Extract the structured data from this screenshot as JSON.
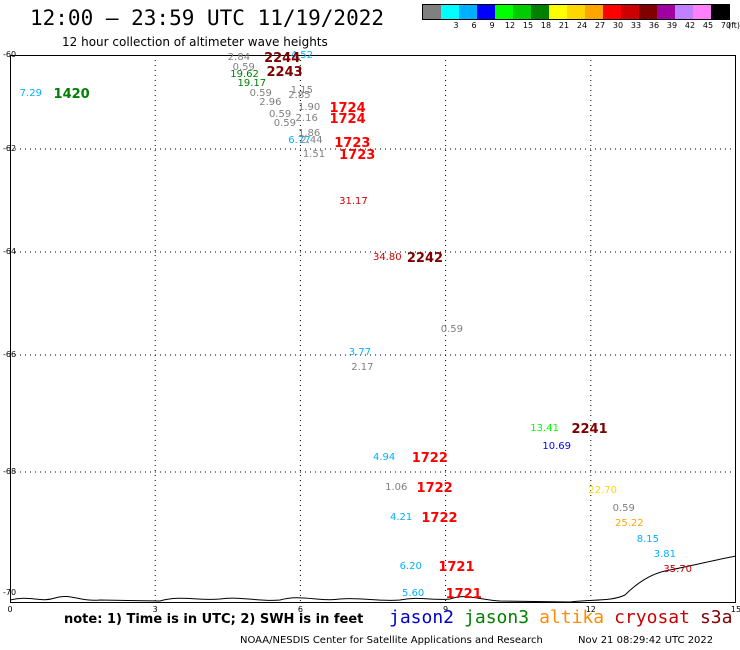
{
  "header": {
    "title": "12:00 – 23:59 UTC 11/19/2022",
    "subtitle": "12 hour collection of altimeter wave heights"
  },
  "legend": {
    "unit": "(ft)",
    "items": [
      {
        "label": "",
        "color": "#808080"
      },
      {
        "label": "3",
        "color": "#00ffff"
      },
      {
        "label": "6",
        "color": "#00b0ff"
      },
      {
        "label": "9",
        "color": "#0000ff"
      },
      {
        "label": "12",
        "color": "#00ff00"
      },
      {
        "label": "15",
        "color": "#00cc00"
      },
      {
        "label": "18",
        "color": "#008000"
      },
      {
        "label": "21",
        "color": "#ffff00"
      },
      {
        "label": "24",
        "color": "#ffd700"
      },
      {
        "label": "27",
        "color": "#ffa500"
      },
      {
        "label": "30",
        "color": "#ff0000"
      },
      {
        "label": "33",
        "color": "#cc0000"
      },
      {
        "label": "36",
        "color": "#800000"
      },
      {
        "label": "39",
        "color": "#a000a0"
      },
      {
        "label": "42",
        "color": "#c080ff"
      },
      {
        "label": "45",
        "color": "#ff80ff"
      },
      {
        "label": "70",
        "color": "#000000"
      }
    ]
  },
  "axes": {
    "lat_ticks": [
      "-60",
      "-62",
      "-64",
      "-66",
      "-68",
      "-70"
    ],
    "lon_ticks": [
      "0",
      "3",
      "6",
      "9",
      "12",
      "15"
    ]
  },
  "observations": [
    {
      "text": "7.29",
      "color": "#00b0ff",
      "lon": 0.2,
      "lat": -60.8
    },
    {
      "text": "2.84",
      "color": "#808080",
      "lon": 4.5,
      "lat": -60.05
    },
    {
      "text": "0.59",
      "color": "#808080",
      "lon": 4.6,
      "lat": -60.25
    },
    {
      "text": "19.62",
      "color": "#008000",
      "lon": 4.55,
      "lat": -60.4
    },
    {
      "text": "19.17",
      "color": "#008000",
      "lon": 4.7,
      "lat": -60.6
    },
    {
      "text": "0.59",
      "color": "#808080",
      "lon": 4.95,
      "lat": -60.8
    },
    {
      "text": "1.15",
      "color": "#808080",
      "lon": 5.8,
      "lat": -60.75
    },
    {
      "text": "2.85",
      "color": "#808080",
      "lon": 5.75,
      "lat": -60.85
    },
    {
      "text": "2.96",
      "color": "#808080",
      "lon": 5.15,
      "lat": -61.0
    },
    {
      "text": "1.90",
      "color": "#808080",
      "lon": 5.95,
      "lat": -61.1
    },
    {
      "text": "0.59",
      "color": "#808080",
      "lon": 5.35,
      "lat": -61.25
    },
    {
      "text": "2.16",
      "color": "#808080",
      "lon": 5.9,
      "lat": -61.35
    },
    {
      "text": "0.59",
      "color": "#808080",
      "lon": 5.45,
      "lat": -61.45
    },
    {
      "text": "1.86",
      "color": "#808080",
      "lon": 5.95,
      "lat": -61.65
    },
    {
      "text": "6.77",
      "color": "#00b0ff",
      "lon": 5.75,
      "lat": -61.8
    },
    {
      "text": "2.44",
      "color": "#808080",
      "lon": 6.0,
      "lat": -61.8
    },
    {
      "text": "1.51",
      "color": "#808080",
      "lon": 6.05,
      "lat": -62.1
    },
    {
      "text": "31.17",
      "color": "#cc0000",
      "lon": 6.8,
      "lat": -63.0
    },
    {
      "text": "34.80",
      "color": "#cc0000",
      "lon": 7.5,
      "lat": -64.1
    },
    {
      "text": "0.59",
      "color": "#808080",
      "lon": 8.9,
      "lat": -65.5
    },
    {
      "text": "3.77",
      "color": "#00b0ff",
      "lon": 7.0,
      "lat": -65.95
    },
    {
      "text": "2.17",
      "color": "#808080",
      "lon": 7.05,
      "lat": -66.2
    },
    {
      "text": "13.41",
      "color": "#00ff00",
      "lon": 10.75,
      "lat": -67.25
    },
    {
      "text": "10.69",
      "color": "#0000ff",
      "lon": 11.0,
      "lat": -67.55
    },
    {
      "text": "4.94",
      "color": "#00b0ff",
      "lon": 7.5,
      "lat": -67.75
    },
    {
      "text": "1.06",
      "color": "#808080",
      "lon": 7.75,
      "lat": -68.25
    },
    {
      "text": "22.70",
      "color": "#ffd700",
      "lon": 11.95,
      "lat": -68.3
    },
    {
      "text": "0.59",
      "color": "#808080",
      "lon": 12.45,
      "lat": -68.6
    },
    {
      "text": "4.21",
      "color": "#00b0ff",
      "lon": 7.85,
      "lat": -68.75
    },
    {
      "text": "25.22",
      "color": "#ffa500",
      "lon": 12.5,
      "lat": -68.85
    },
    {
      "text": "8.15",
      "color": "#00b0ff",
      "lon": 12.95,
      "lat": -69.1
    },
    {
      "text": "3.81",
      "color": "#00b0ff",
      "lon": 13.3,
      "lat": -69.35
    },
    {
      "text": "35.70",
      "color": "#cc0000",
      "lon": 13.5,
      "lat": -69.6
    },
    {
      "text": "6.20",
      "color": "#00b0ff",
      "lon": 8.05,
      "lat": -69.55
    },
    {
      "text": "4.52",
      "color": "#00b0ff",
      "lon": 5.8,
      "lat": -60.0
    },
    {
      "text": "5.60",
      "color": "#00b0ff",
      "lon": 8.1,
      "lat": -70.0
    }
  ],
  "times": [
    {
      "text": "1420",
      "color": "#008000",
      "lon": 0.9,
      "lat": -60.8
    },
    {
      "text": "2244",
      "color": "#800000",
      "lon": 5.25,
      "lat": -60.05
    },
    {
      "text": "2243",
      "color": "#800000",
      "lon": 5.3,
      "lat": -60.35
    },
    {
      "text": "1724",
      "color": "#ff0000",
      "lon": 6.6,
      "lat": -61.1
    },
    {
      "text": "1724",
      "color": "#ff0000",
      "lon": 6.6,
      "lat": -61.35
    },
    {
      "text": "1723",
      "color": "#ff0000",
      "lon": 6.7,
      "lat": -61.85
    },
    {
      "text": "1723",
      "color": "#ff0000",
      "lon": 6.8,
      "lat": -62.1
    },
    {
      "text": "2242",
      "color": "#800000",
      "lon": 8.2,
      "lat": -64.1
    },
    {
      "text": "2241",
      "color": "#800000",
      "lon": 11.6,
      "lat": -67.25
    },
    {
      "text": "1722",
      "color": "#ff0000",
      "lon": 8.3,
      "lat": -67.75
    },
    {
      "text": "1722",
      "color": "#ff0000",
      "lon": 8.4,
      "lat": -68.25
    },
    {
      "text": "1722",
      "color": "#ff0000",
      "lon": 8.5,
      "lat": -68.75
    },
    {
      "text": "1721",
      "color": "#ff0000",
      "lon": 8.85,
      "lat": -69.55
    },
    {
      "text": "1721",
      "color": "#ff0000",
      "lon": 9.0,
      "lat": -70.0
    }
  ],
  "footer": {
    "note": "note:  1) Time is in UTC;  2) SWH is in feet",
    "satellites": [
      {
        "name": "jason2",
        "color": "#0000cc"
      },
      {
        "name": "jason3",
        "color": "#008000"
      },
      {
        "name": "altika",
        "color": "#ff8c00"
      },
      {
        "name": "cryosat",
        "color": "#cc0000"
      },
      {
        "name": "s3a",
        "color": "#800000"
      }
    ],
    "credit": "NOAA/NESDIS Center for Satellite Applications and Research",
    "timestamp": "Nov 21 08:29:42 UTC 2022"
  }
}
